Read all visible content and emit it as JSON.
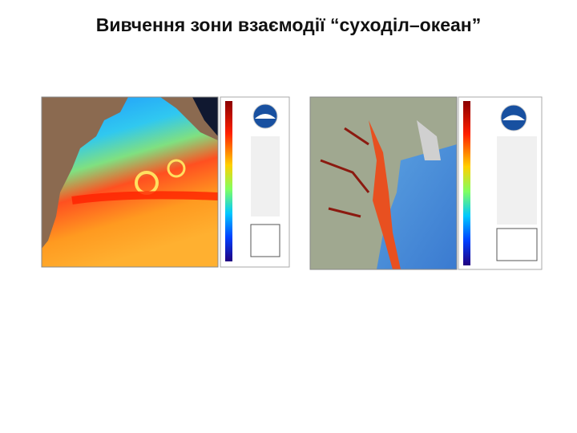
{
  "title": "Вивчення зони взаємодії “суходіл–океан”"
}
